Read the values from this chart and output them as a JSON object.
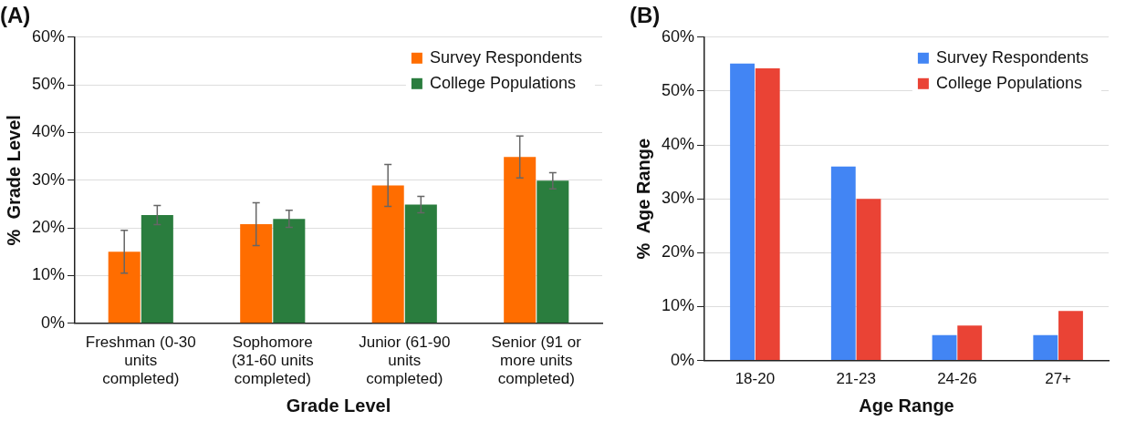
{
  "chart_data": [
    {
      "type": "bar",
      "title": "(A)",
      "xlabel": "Grade Level",
      "ylabel": "%  Grade Level",
      "categories": [
        "Freshman (0-30 units completed)",
        "Sophomore (31-60 units completed)",
        "Junior (61-90 units completed)",
        "Senior (91 or more units completed)"
      ],
      "series": [
        {
          "name": "Survey Respondents",
          "color": "#ff6d00",
          "values": [
            15.0,
            20.8,
            28.9,
            34.9
          ],
          "errors": [
            4.5,
            4.5,
            4.4,
            4.4
          ]
        },
        {
          "name": "College Populations",
          "color": "#2a7d3e",
          "values": [
            22.7,
            21.9,
            24.9,
            29.9
          ],
          "errors": [
            2.0,
            1.8,
            1.7,
            1.7
          ]
        }
      ],
      "ylim": [
        0,
        60
      ],
      "yticks": [
        {
          "value": 0,
          "label": "0%"
        },
        {
          "value": 10,
          "label": "10%"
        },
        {
          "value": 20,
          "label": "20%"
        },
        {
          "value": 30,
          "label": "30%"
        },
        {
          "value": 40,
          "label": "40%"
        },
        {
          "value": 50,
          "label": "50%"
        },
        {
          "value": 60,
          "label": "60%"
        }
      ],
      "grid": "y",
      "legend": "top right"
    },
    {
      "type": "bar",
      "title": "(B)",
      "xlabel": "Age Range",
      "ylabel": "%  Age Range",
      "categories": [
        "18-20",
        "21-23",
        "24-26",
        "27+"
      ],
      "series": [
        {
          "name": "Survey Respondents",
          "color": "#4285f4",
          "values": [
            55.1,
            36.0,
            4.7,
            4.7
          ]
        },
        {
          "name": "College Populations",
          "color": "#ea4335",
          "values": [
            54.2,
            30.0,
            6.5,
            9.2
          ]
        }
      ],
      "ylim": [
        0,
        60
      ],
      "yticks": [
        {
          "value": 0,
          "label": "0%"
        },
        {
          "value": 10,
          "label": "10%"
        },
        {
          "value": 20,
          "label": "20%"
        },
        {
          "value": 30,
          "label": "30%"
        },
        {
          "value": 40,
          "label": "40%"
        },
        {
          "value": 50,
          "label": "50%"
        },
        {
          "value": 60,
          "label": "60%"
        }
      ],
      "grid": "y",
      "legend": "top right"
    }
  ]
}
